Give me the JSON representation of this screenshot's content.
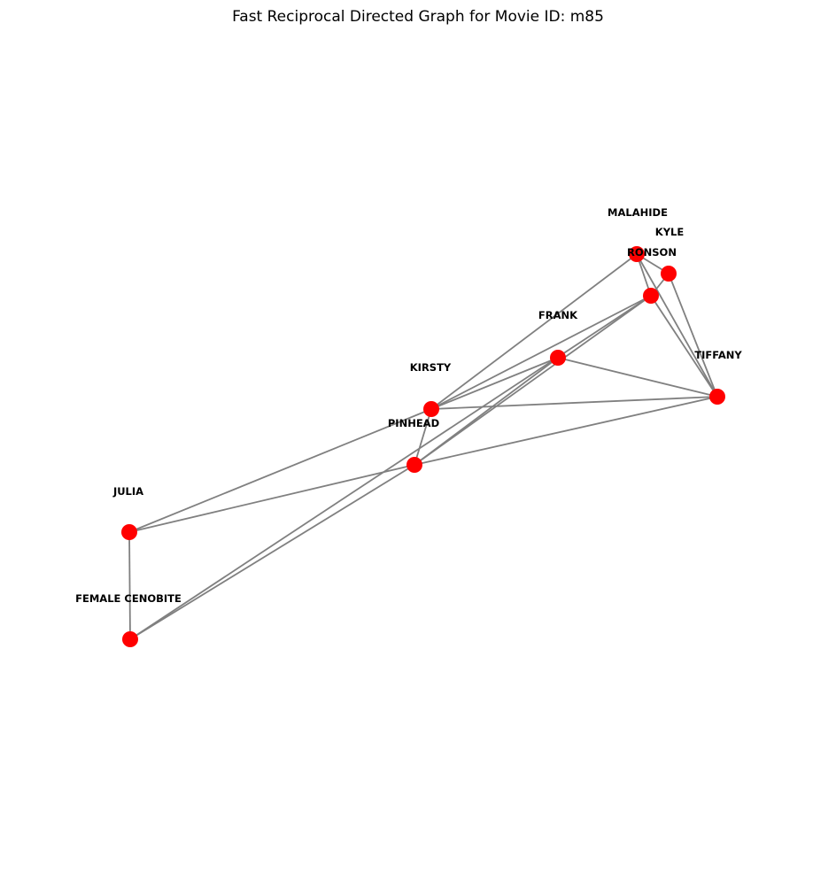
{
  "title": "Fast Reciprocal Directed Graph for Movie ID: m85",
  "colors": {
    "node": "#ff0000",
    "edge": "#808080",
    "label": "#000000",
    "background": "#ffffff"
  },
  "graph": {
    "nodes": [
      {
        "id": "MALAHIDE",
        "label": "MALAHIDE"
      },
      {
        "id": "KYLE",
        "label": "KYLE"
      },
      {
        "id": "RONSON",
        "label": "RONSON"
      },
      {
        "id": "FRANK",
        "label": "FRANK"
      },
      {
        "id": "TIFFANY",
        "label": "TIFFANY"
      },
      {
        "id": "KIRSTY",
        "label": "KIRSTY"
      },
      {
        "id": "PINHEAD",
        "label": "PINHEAD"
      },
      {
        "id": "JULIA",
        "label": "JULIA"
      },
      {
        "id": "FEMALE CENOBITE",
        "label": "FEMALE CENOBITE"
      }
    ],
    "edges": [
      [
        "MALAHIDE",
        "KYLE"
      ],
      [
        "MALAHIDE",
        "RONSON"
      ],
      [
        "MALAHIDE",
        "TIFFANY"
      ],
      [
        "MALAHIDE",
        "KIRSTY"
      ],
      [
        "KYLE",
        "RONSON"
      ],
      [
        "KYLE",
        "TIFFANY"
      ],
      [
        "RONSON",
        "TIFFANY"
      ],
      [
        "RONSON",
        "KIRSTY"
      ],
      [
        "RONSON",
        "PINHEAD"
      ],
      [
        "RONSON",
        "FEMALE CENOBITE"
      ],
      [
        "FRANK",
        "TIFFANY"
      ],
      [
        "FRANK",
        "KIRSTY"
      ],
      [
        "FRANK",
        "PINHEAD"
      ],
      [
        "TIFFANY",
        "KIRSTY"
      ],
      [
        "TIFFANY",
        "PINHEAD"
      ],
      [
        "KIRSTY",
        "PINHEAD"
      ],
      [
        "KIRSTY",
        "JULIA"
      ],
      [
        "PINHEAD",
        "JULIA"
      ],
      [
        "PINHEAD",
        "FEMALE CENOBITE"
      ],
      [
        "JULIA",
        "FEMALE CENOBITE"
      ]
    ]
  }
}
